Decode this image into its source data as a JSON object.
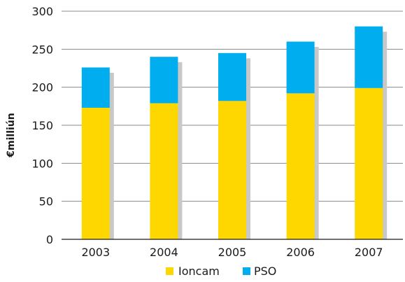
{
  "chart_data": {
    "type": "bar",
    "stacked": true,
    "categories": [
      "2003",
      "2004",
      "2005",
      "2006",
      "2007"
    ],
    "series": [
      {
        "name": "Ioncam",
        "color": "#FFD700",
        "values": [
          173,
          179,
          182,
          192,
          199
        ]
      },
      {
        "name": "PSO",
        "color": "#00AEEF",
        "values": [
          53,
          61,
          63,
          68,
          81
        ]
      }
    ],
    "shadow_color": "#c8c8c8",
    "ylabel": "€milliún",
    "xlabel": "",
    "title": "",
    "ylim": [
      0,
      300
    ],
    "yticks": [
      0,
      50,
      100,
      150,
      200,
      250,
      300
    ],
    "grid": true,
    "legend_position": "bottom-center"
  }
}
